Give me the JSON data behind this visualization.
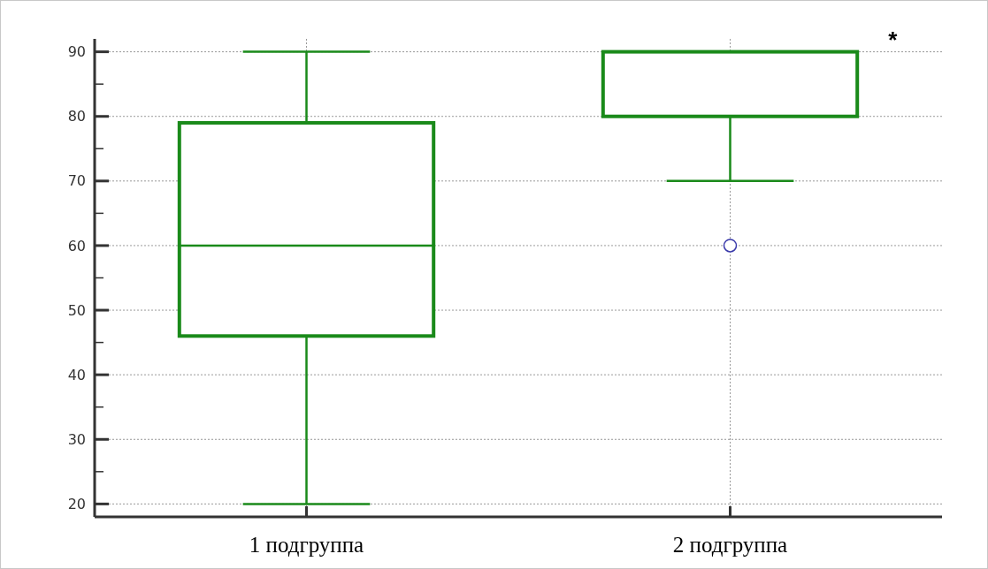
{
  "chart_data": {
    "type": "box",
    "categories": [
      "1 подгруппа",
      "2 подгруппа"
    ],
    "boxes": [
      {
        "low": 20,
        "q1": 46,
        "median": 60,
        "q3": 79,
        "high": 90
      },
      {
        "low": 70,
        "q1": 80,
        "median": 90,
        "q3": 90,
        "high": 90,
        "outliers": [
          60
        ]
      }
    ],
    "color": "#1a8a1a",
    "ylim": [
      18,
      92
    ],
    "yticks": [
      20,
      {
        "value": 25,
        "label": null
      },
      30,
      {
        "value": 35,
        "label": null
      },
      40,
      {
        "value": 45,
        "label": null
      },
      50,
      {
        "value": 55,
        "label": null
      },
      60,
      {
        "value": 65,
        "label": null
      },
      70,
      {
        "value": 75,
        "label": null
      },
      80,
      {
        "value": 85,
        "label": null
      },
      90
    ],
    "grid": true,
    "annotations": [
      "*"
    ]
  }
}
